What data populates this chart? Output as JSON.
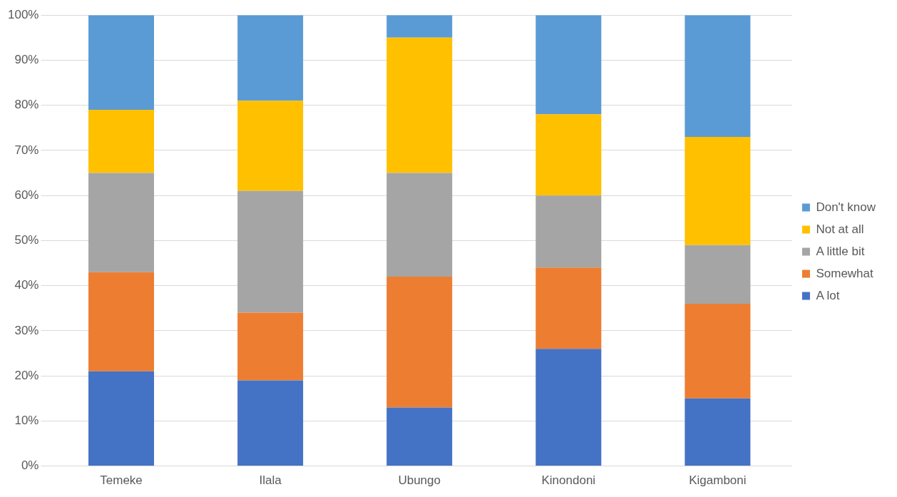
{
  "chart_data": {
    "type": "bar",
    "stacked": true,
    "categories": [
      "Temeke",
      "Ilala",
      "Ubungo",
      "Kinondoni",
      "Kigamboni"
    ],
    "series": [
      {
        "name": "A lot",
        "color": "#4472c4",
        "values": [
          21,
          19,
          13,
          26,
          15
        ]
      },
      {
        "name": "Somewhat",
        "color": "#ed7d31",
        "values": [
          22,
          15,
          29,
          18,
          21
        ]
      },
      {
        "name": "A little bit",
        "color": "#a5a5a5",
        "values": [
          22,
          27,
          23,
          16,
          13
        ]
      },
      {
        "name": "Not at all",
        "color": "#ffc000",
        "values": [
          14,
          20,
          30,
          18,
          24
        ]
      },
      {
        "name": "Don't know",
        "color": "#5b9bd5",
        "values": [
          21,
          19,
          5,
          22,
          27
        ]
      }
    ],
    "ylim": [
      0,
      100
    ],
    "yticks": [
      {
        "value": 0,
        "label": "0%"
      },
      {
        "value": 10,
        "label": "10%"
      },
      {
        "value": 20,
        "label": "20%"
      },
      {
        "value": 30,
        "label": "30%"
      },
      {
        "value": 40,
        "label": "40%"
      },
      {
        "value": 50,
        "label": "50%"
      },
      {
        "value": 60,
        "label": "60%"
      },
      {
        "value": 70,
        "label": "70%"
      },
      {
        "value": 80,
        "label": "80%"
      },
      {
        "value": 90,
        "label": "90%"
      },
      {
        "value": 100,
        "label": "100%"
      }
    ],
    "grid": "y",
    "legend": "right"
  }
}
